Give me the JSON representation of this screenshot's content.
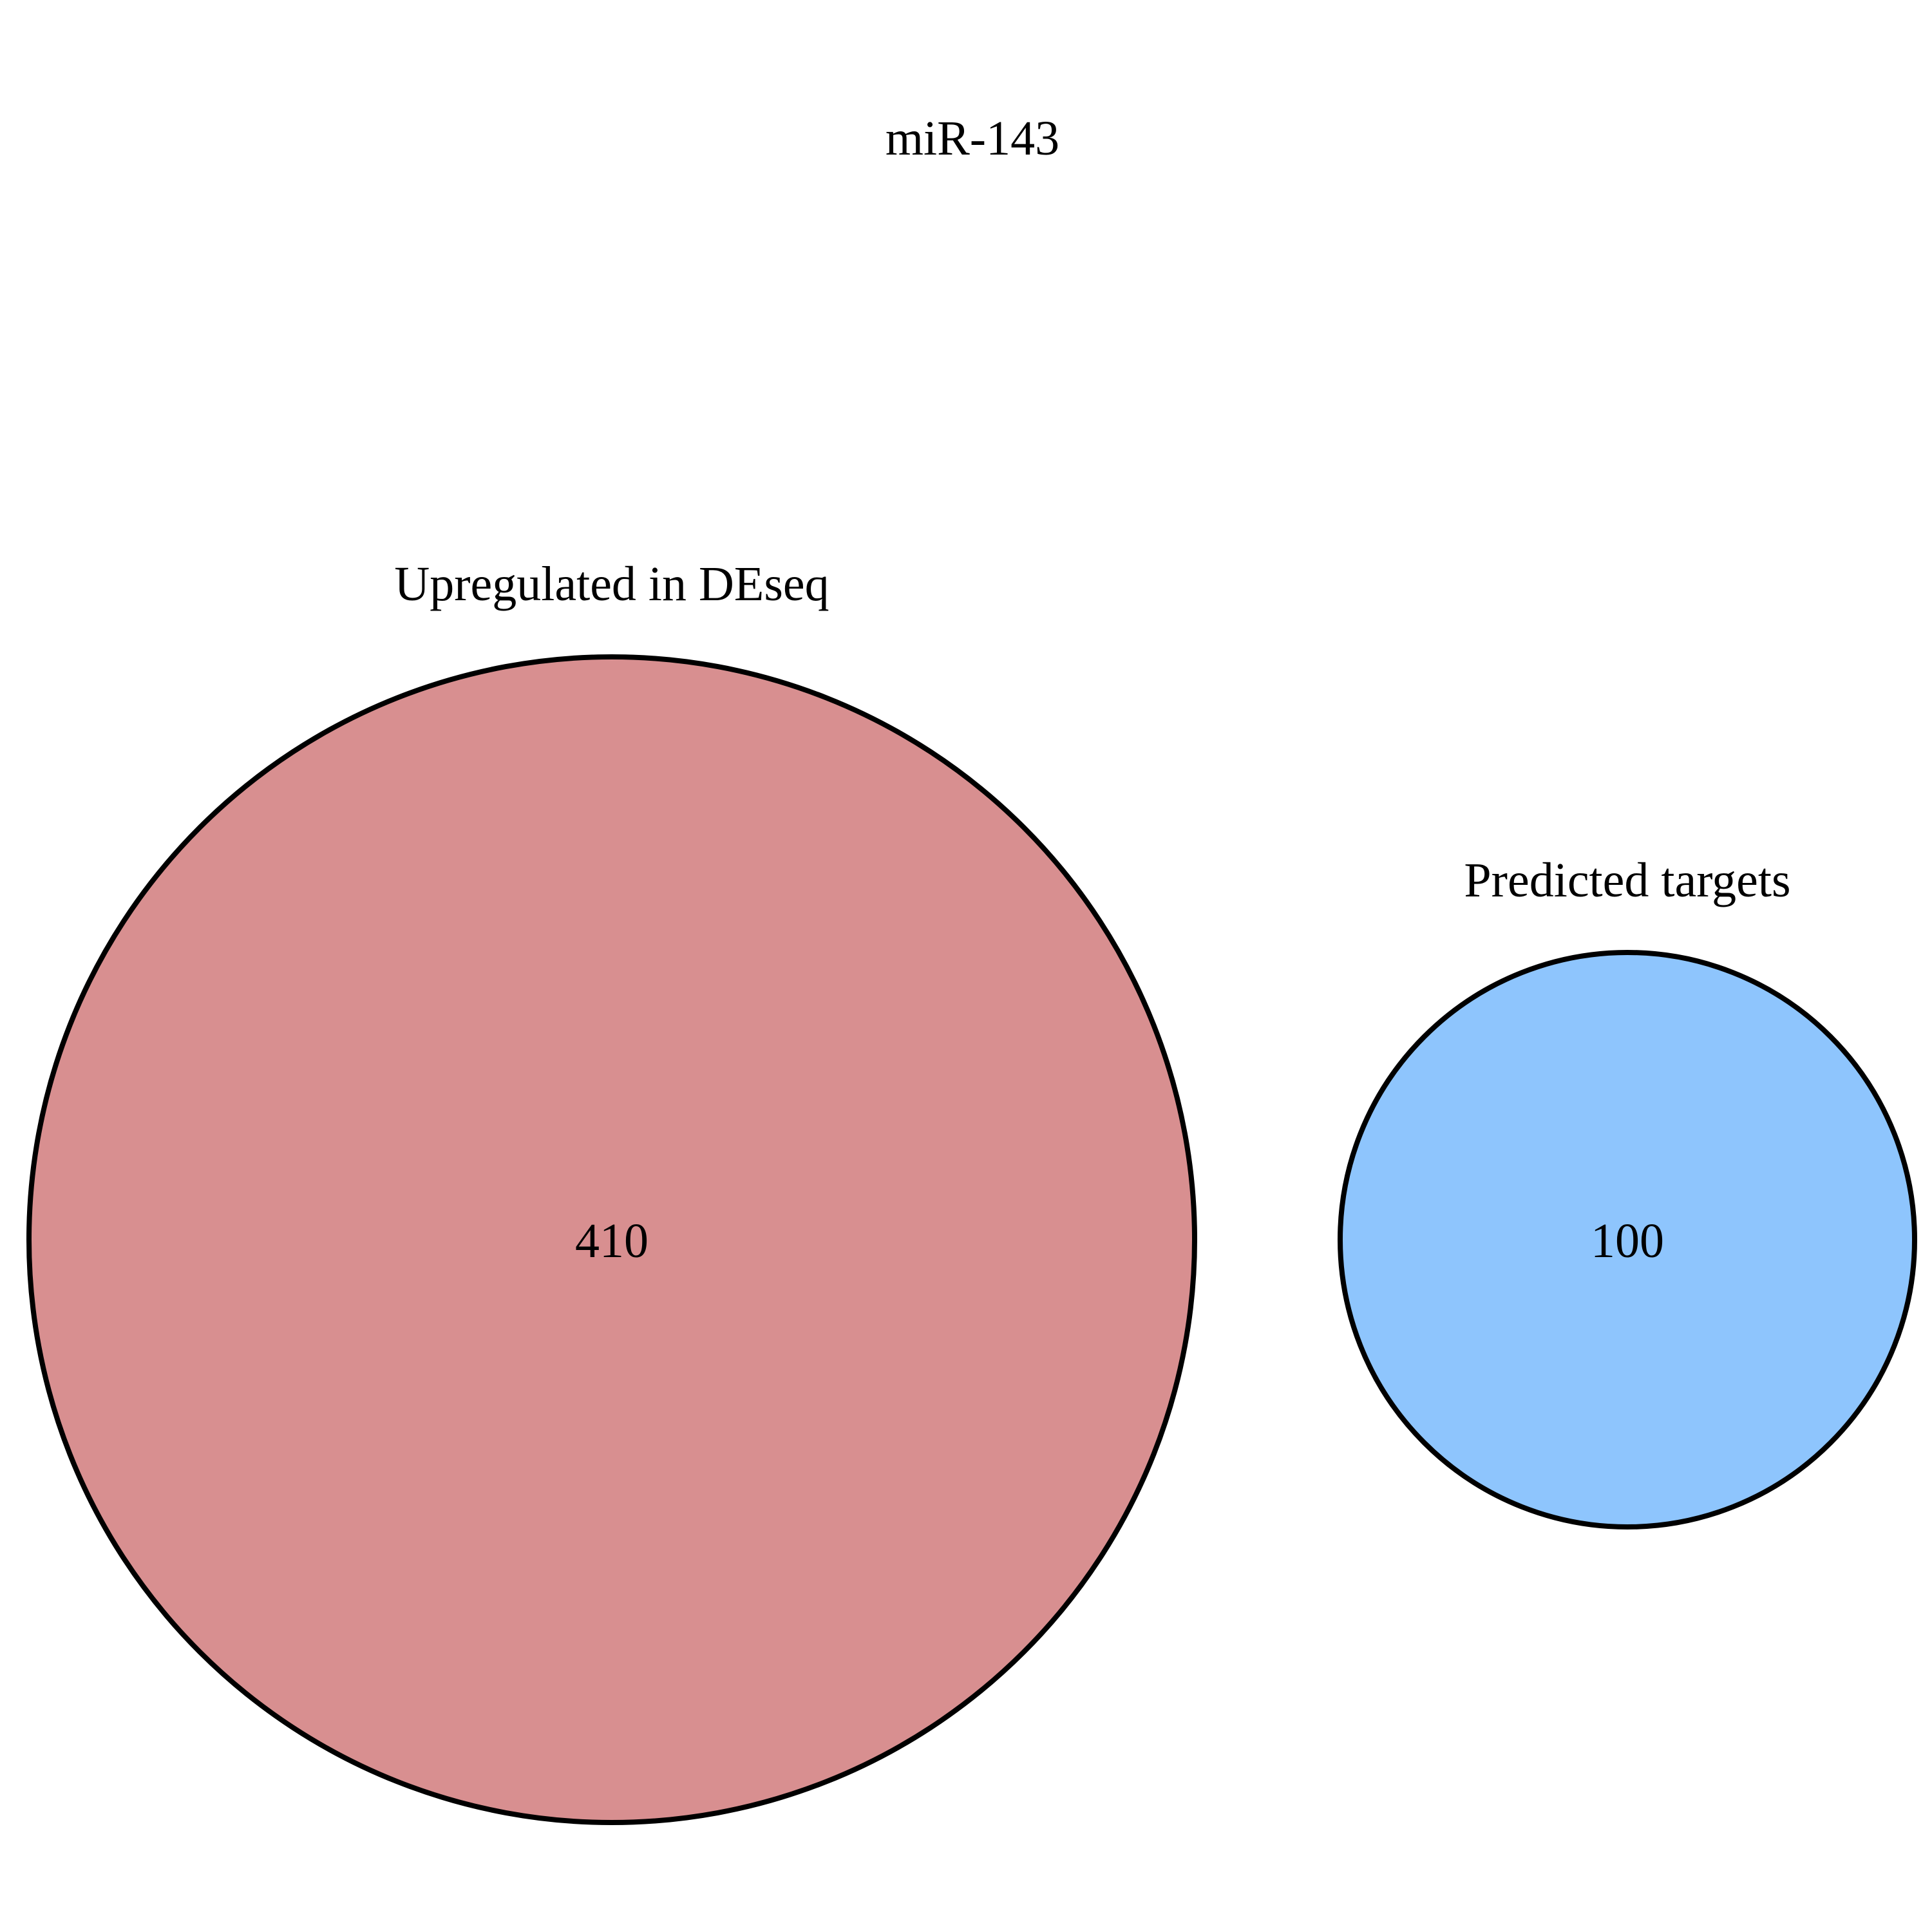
{
  "title": "miR-143",
  "sets": [
    {
      "label": "Upregulated in DEseq",
      "count": "410",
      "fill_color": "#d88f90"
    },
    {
      "label": "Predicted targets",
      "count": "100",
      "fill_color": "#8ec5fd"
    }
  ],
  "outline_color": "#000000",
  "background_color": "#ffffff"
}
